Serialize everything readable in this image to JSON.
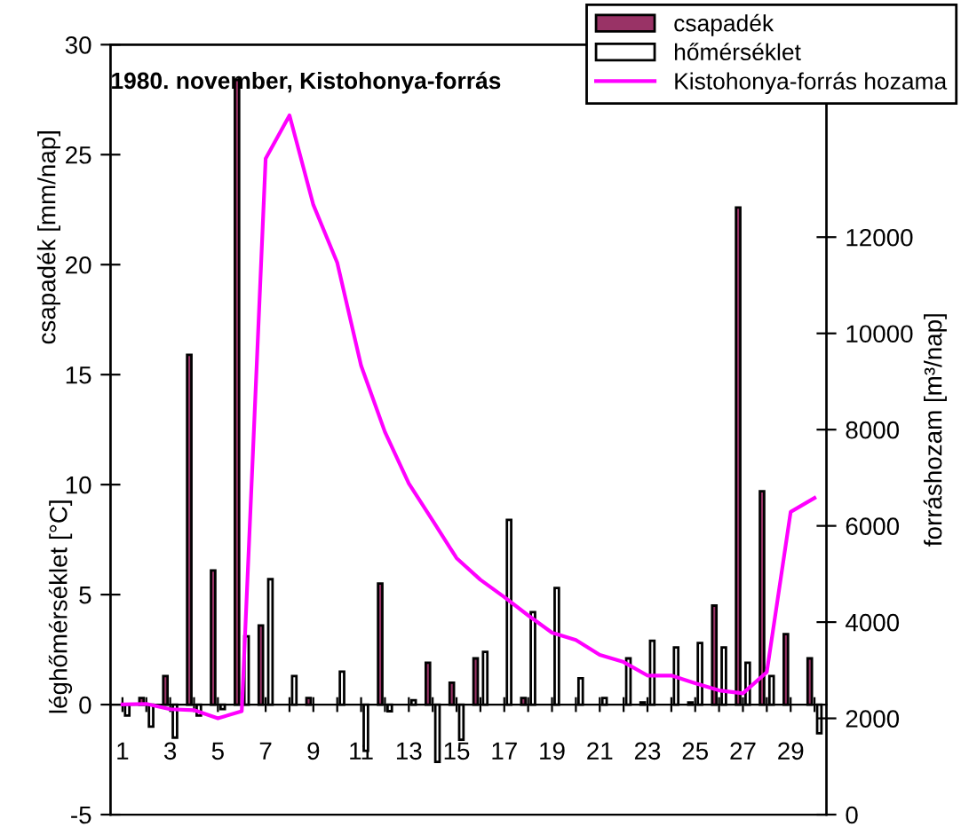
{
  "chart_data": {
    "type": "bar",
    "title": "1980. november, Kistohonya-forrás",
    "ylabel": "csapadék [mm/nap]",
    "y2label": "forráshozam [m³/nap]",
    "annotations": [
      "léghőmérséklet [°C]"
    ],
    "categories": [
      "1",
      null,
      "3",
      null,
      "5",
      null,
      "7",
      null,
      "9",
      null,
      "11",
      null,
      "13",
      null,
      "15",
      null,
      "17",
      null,
      "19",
      null,
      "21",
      null,
      "23",
      null,
      "25",
      null,
      "27",
      null,
      "29",
      null
    ],
    "series": [
      {
        "name": "csapadék",
        "color": "#993366",
        "values": [
          null,
          0.3,
          1.3,
          15.9,
          6.1,
          28.4,
          3.6,
          null,
          0.3,
          null,
          null,
          5.5,
          null,
          1.9,
          1.0,
          2.1,
          null,
          0.3,
          null,
          null,
          null,
          null,
          0.1,
          null,
          0.1,
          4.5,
          22.6,
          9.7,
          3.2,
          2.1
        ]
      },
      {
        "name": "hőmérséklet",
        "color": "#ffffff",
        "values": [
          -0.5,
          -1.0,
          -1.5,
          -0.5,
          -0.2,
          3.1,
          5.7,
          1.3,
          null,
          1.5,
          -2.1,
          -0.3,
          0.2,
          -2.6,
          -1.6,
          2.4,
          8.4,
          4.2,
          5.3,
          1.2,
          0.3,
          2.1,
          2.9,
          2.6,
          2.8,
          2.6,
          1.9,
          1.3,
          null,
          -1.3
        ]
      },
      {
        "name": "Kistohonya-forrás hozama",
        "type": "line",
        "axis": "y2",
        "color": "#ff00ff",
        "values": [
          2290,
          2300,
          2190,
          2170,
          2000,
          2150,
          13630,
          14530,
          12670,
          11470,
          9330,
          7950,
          6880,
          6110,
          5330,
          4880,
          4520,
          4140,
          3780,
          3630,
          3320,
          3170,
          2890,
          2890,
          2730,
          2580,
          2520,
          2960,
          6290,
          6580
        ]
      }
    ],
    "ylim": [
      -5,
      30
    ],
    "yticks": [
      -5,
      0,
      5,
      10,
      15,
      20,
      25,
      30
    ],
    "y2lim": [
      0,
      16000
    ],
    "y2ticks": [
      0,
      2000,
      4000,
      6000,
      8000,
      10000,
      12000
    ],
    "legend": "top right",
    "grid": false,
    "marker": "none",
    "line_style": "solid"
  }
}
